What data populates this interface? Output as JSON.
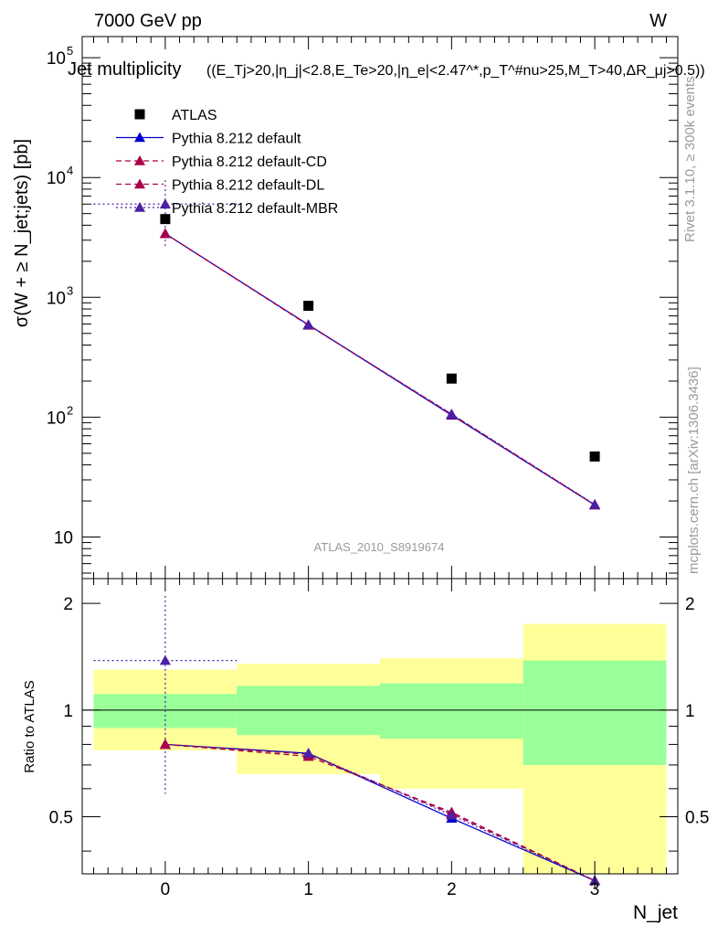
{
  "header": {
    "energy": "7000 GeV pp",
    "process": "W"
  },
  "title_main": "Jet multiplicity",
  "title_cuts": "((E_Tj>20,|η_j|<2.8,E_Te>20,|η_e|<2.47^*,p_T^#nu>25,M_T>40,ΔR_μj>0.5))",
  "ylabel_main": "σ(W + ≥ N_jet;jets) [pb]",
  "ylabel_ratio": "Ratio to ATLAS",
  "xlabel": "N_jet",
  "analysis_id": "ATLAS_2010_S8919674",
  "side_text_top": "Rivet 3.1.10, ≥ 300k events",
  "side_text_bottom": "mcplots.cern.ch [arXiv:1306.3436]",
  "chart_data": {
    "type": "scatter",
    "x": [
      0,
      1,
      2,
      3
    ],
    "xlim": [
      -0.58,
      3.58
    ],
    "xticks": [
      0,
      1,
      2,
      3
    ],
    "ylim_main": [
      4.5,
      150000
    ],
    "yscale_main": "log",
    "yticks_main": [
      {
        "v": 10,
        "label": "10"
      },
      {
        "v": 100,
        "label": "10^2"
      },
      {
        "v": 1000,
        "label": "10^3"
      },
      {
        "v": 10000,
        "label": "10^4"
      },
      {
        "v": 100000,
        "label": "10^5"
      }
    ],
    "ylim_ratio": [
      0.345,
      2.35
    ],
    "yscale_ratio": "log",
    "yticks_ratio": [
      {
        "v": 0.5,
        "label": "0.5"
      },
      {
        "v": 1,
        "label": "1"
      },
      {
        "v": 2,
        "label": "2"
      }
    ],
    "data": {
      "name": "ATLAS",
      "color": "#000000",
      "values": [
        4500,
        850,
        210,
        47
      ],
      "band_green": [
        [
          0.89,
          1.11
        ],
        [
          0.85,
          1.17
        ],
        [
          0.83,
          1.19
        ],
        [
          0.7,
          1.38
        ]
      ],
      "band_yellow": [
        [
          0.77,
          1.3
        ],
        [
          0.66,
          1.35
        ],
        [
          0.6,
          1.4
        ],
        [
          0.33,
          1.75
        ]
      ]
    },
    "series": [
      {
        "name": "Pythia 8.212 default",
        "color": "#0000cc",
        "dash": "solid",
        "values": [
          3400,
          590,
          104,
          18.5
        ],
        "ratio": [
          0.8,
          0.755,
          0.495,
          0.33
        ]
      },
      {
        "name": "Pythia 8.212 default-CD",
        "color": "#a8004a",
        "dash": "dashed",
        "values": [
          3400,
          585,
          106,
          18.6
        ],
        "ratio": [
          0.8,
          0.74,
          0.515,
          0.33
        ]
      },
      {
        "name": "Pythia 8.212 default-DL",
        "color": "#a8004a",
        "dash": "dashed",
        "values": [
          3400,
          590,
          105,
          18.5
        ],
        "ratio": [
          0.8,
          0.75,
          0.51,
          0.33
        ]
      },
      {
        "name": "Pythia 8.212 default-MBR",
        "color": "#4b1fa6",
        "dash": "dotted",
        "values": [
          6000,
          590,
          106,
          18.7
        ],
        "ratio": [
          1.38,
          0.755,
          0.505,
          0.33
        ],
        "first_bin_err": [
          2600,
          9500
        ],
        "first_bin_ratio_err": [
          0.58,
          2.1
        ]
      }
    ]
  }
}
